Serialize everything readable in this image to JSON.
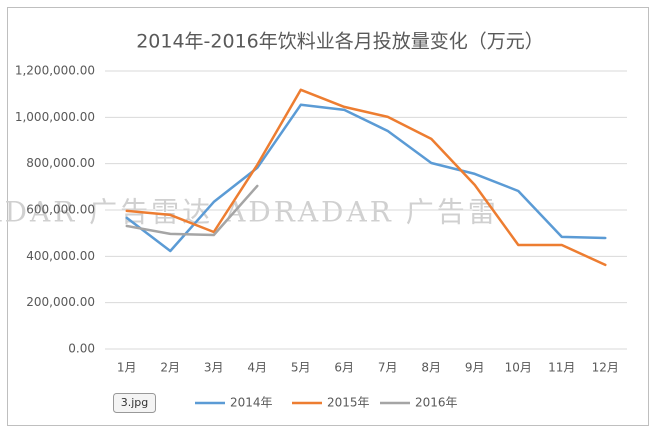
{
  "chart_data": {
    "type": "line",
    "title": "2014年-2016年饮料业各月投放量变化（万元）",
    "categories": [
      "1月",
      "2月",
      "3月",
      "4月",
      "5月",
      "6月",
      "7月",
      "8月",
      "9月",
      "10月",
      "11月",
      "12月"
    ],
    "series": [
      {
        "name": "2014年",
        "color": "#5b9bd5",
        "values": [
          566000,
          423000,
          635000,
          782000,
          1054000,
          1032000,
          941000,
          803000,
          756000,
          682000,
          484000,
          479000
        ]
      },
      {
        "name": "2015年",
        "color": "#ed7d31",
        "values": [
          596000,
          579000,
          505000,
          795000,
          1119000,
          1045000,
          1002000,
          907000,
          708000,
          449000,
          449000,
          363000
        ]
      },
      {
        "name": "2016年",
        "color": "#a5a5a5",
        "values": [
          531000,
          497000,
          492000,
          704000,
          null,
          null,
          null,
          null,
          null,
          null,
          null,
          null
        ]
      }
    ],
    "ylim": [
      0,
      1200000
    ],
    "yticks": [
      {
        "value": 0,
        "label": "0.00"
      },
      {
        "value": 200000,
        "label": "200,000.00"
      },
      {
        "value": 400000,
        "label": "400,000.00"
      },
      {
        "value": 600000,
        "label": "600,000.00"
      },
      {
        "value": 800000,
        "label": "800,000.00"
      },
      {
        "value": 1000000,
        "label": "1,000,000.00"
      },
      {
        "value": 1200000,
        "label": "1,200,000.00"
      }
    ],
    "grid": true,
    "legend": "bottom",
    "watermark": "ADAR  广告雷达  ADRADAR  广告雷",
    "file_label": "3.jpg"
  }
}
